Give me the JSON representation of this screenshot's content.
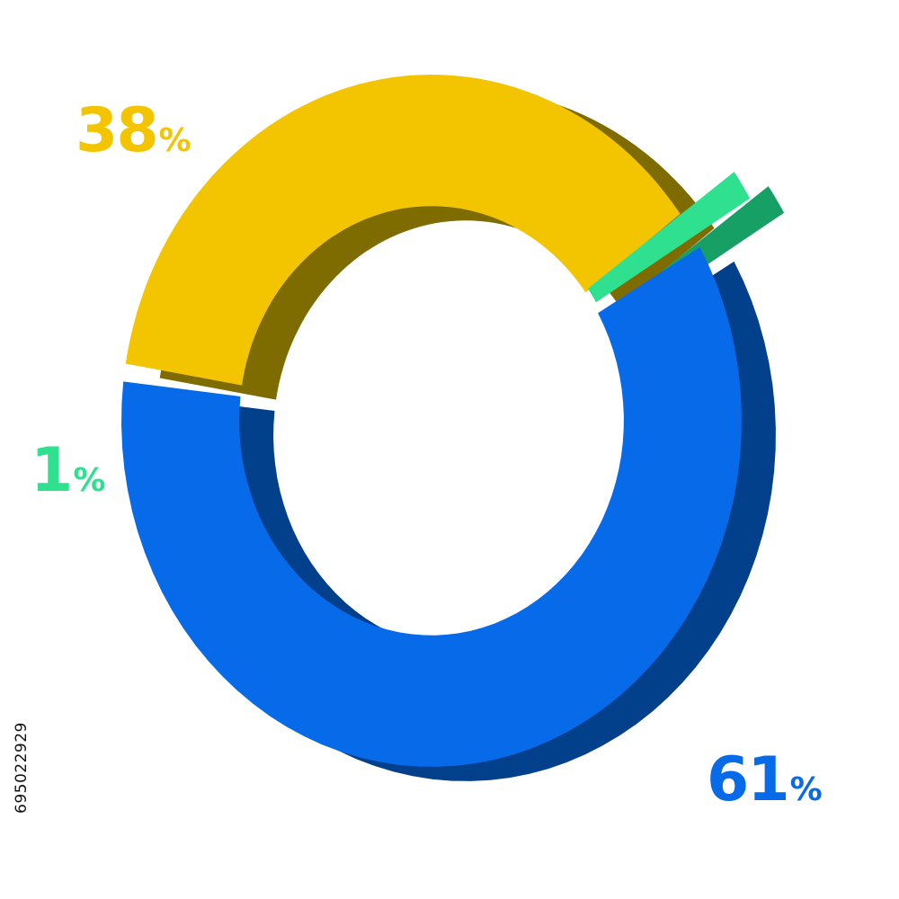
{
  "chart_data": {
    "type": "pie",
    "style": "3d-donut",
    "slices": [
      {
        "value": 38,
        "label": "38",
        "unit": "%",
        "color": "#F2C500",
        "shade": "#7F6C00"
      },
      {
        "value": 1,
        "label": "1",
        "unit": "%",
        "color": "#2FE08F",
        "shade": "#17A066"
      },
      {
        "value": 61,
        "label": "61",
        "unit": "%",
        "color": "#076AE8",
        "shade": "#03408C"
      }
    ]
  },
  "stock_id": "695022929"
}
